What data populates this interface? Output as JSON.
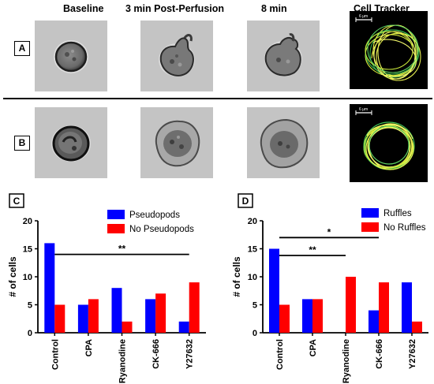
{
  "columns": [
    "Baseline",
    "3 min Post-Perfusion",
    "8 min",
    "Cell Tracker"
  ],
  "rows": [
    "A",
    "B"
  ],
  "tracker_scale": "6 µm",
  "panels": [
    {
      "label": "C",
      "chart_data": {
        "type": "bar",
        "categories": [
          "Control",
          "CPA",
          "Ryanodine",
          "CK-666",
          "Y27632"
        ],
        "ylabel": "# of cells",
        "ylim": [
          0,
          20
        ],
        "yticks": [
          0,
          5,
          10,
          15,
          20
        ],
        "series": [
          {
            "name": "Pseudopods",
            "color": "#0000ff",
            "values": [
              16,
              5,
              8,
              6,
              2
            ]
          },
          {
            "name": "No Pseudopods",
            "color": "#ff0000",
            "values": [
              5,
              6,
              2,
              7,
              9
            ]
          }
        ],
        "significance": [
          {
            "label": "**",
            "from": "Control",
            "to": "Y27632",
            "y": 14
          }
        ],
        "legend": "top-right"
      }
    },
    {
      "label": "D",
      "chart_data": {
        "type": "bar",
        "categories": [
          "Control",
          "CPA",
          "Ryanodine",
          "CK-666",
          "Y27632"
        ],
        "ylabel": "# of cells",
        "ylim": [
          0,
          20
        ],
        "yticks": [
          0,
          5,
          10,
          15,
          20
        ],
        "series": [
          {
            "name": "Ruffles",
            "color": "#0000ff",
            "values": [
              15,
              6,
              0,
              4,
              9
            ]
          },
          {
            "name": "No Ruffles",
            "color": "#ff0000",
            "values": [
              5,
              6,
              10,
              9,
              2
            ]
          }
        ],
        "significance": [
          {
            "label": "*",
            "from": "Control",
            "to": "CK-666",
            "y": 17
          },
          {
            "label": "**",
            "from": "Control",
            "to": "Ryanodine",
            "y": 13.8
          }
        ],
        "legend": "top-right"
      }
    }
  ]
}
